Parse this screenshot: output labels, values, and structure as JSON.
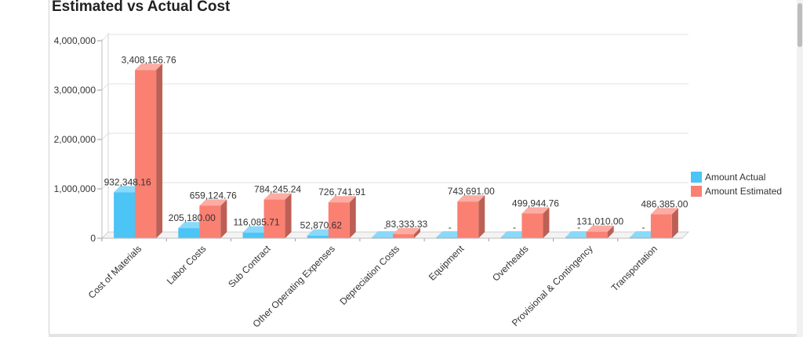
{
  "chart_data": {
    "type": "bar",
    "title": "Estimated vs Actual Cost",
    "categories": [
      "Cost of Materials",
      "Labor Costs",
      "Sub Contract",
      "Other Operating Expenses",
      "Depreciation Costs",
      "Equipment",
      "Overheads",
      "Provisional & Contingency",
      "Transportation"
    ],
    "series": [
      {
        "name": "Amount Actual",
        "color": "#4cc4f5",
        "values": [
          932348.16,
          205180.0,
          116085.71,
          52870.62,
          0,
          0,
          0,
          0,
          0
        ],
        "labels": [
          "932,348.16",
          "205,180.00",
          "116,085.71",
          "52,870.62",
          "-",
          "-",
          "-",
          "-",
          "-"
        ]
      },
      {
        "name": "Amount Estimated",
        "color": "#fa8072",
        "values": [
          3408156.76,
          659124.76,
          784245.24,
          726741.91,
          83333.33,
          743691.0,
          499944.76,
          131010.0,
          486385.0
        ],
        "labels": [
          "3,408,156.76",
          "659,124.76",
          "784,245.24",
          "726,741.91",
          "83,333.33",
          "743,691.00",
          "499,944.76",
          "131,010.00",
          "486,385.00"
        ]
      }
    ],
    "ylim": [
      0,
      4000000
    ],
    "yticks": [
      0,
      1000000,
      2000000,
      3000000,
      4000000
    ],
    "ytick_labels": [
      "0",
      "1,000,000",
      "2,000,000",
      "3,000,000",
      "4,000,000"
    ],
    "xlabel": "",
    "ylabel": "",
    "grid": true,
    "legend": "right",
    "style": "3d"
  }
}
